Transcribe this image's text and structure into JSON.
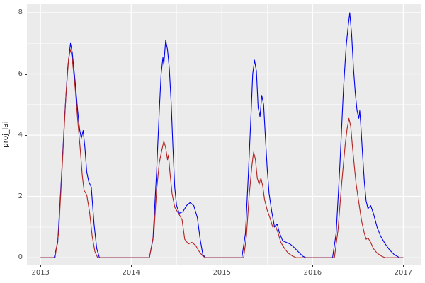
{
  "chart_data": {
    "type": "line",
    "title": "",
    "xlabel": "",
    "ylabel": "proj_lai",
    "xlim": [
      2012.85,
      2017.2
    ],
    "ylim": [
      -0.25,
      8.3
    ],
    "x_ticks": [
      2013,
      2014,
      2015,
      2016,
      2017
    ],
    "x_tick_labels": [
      "2013",
      "2014",
      "2015",
      "2016",
      "2017"
    ],
    "x_minor_ticks": [
      2013.5,
      2014.5,
      2015.5,
      2016.5
    ],
    "y_ticks": [
      0,
      2,
      4,
      6,
      8
    ],
    "y_tick_labels": [
      "0",
      "2",
      "4",
      "6",
      "8"
    ],
    "y_minor_ticks": [
      1,
      3,
      5,
      7
    ],
    "grid": true,
    "legend_position": "none",
    "panel_background": "#EBEBEB",
    "grid_color": "#FFFFFF",
    "tick_label_color": "#4D4D4D",
    "axis_title_color": "#1A1A1A",
    "series": [
      {
        "name": "blue",
        "color": "#0000EE",
        "points": [
          [
            2013.0,
            0
          ],
          [
            2013.15,
            0
          ],
          [
            2013.19,
            0.5
          ],
          [
            2013.23,
            2.6
          ],
          [
            2013.27,
            4.8
          ],
          [
            2013.3,
            6.2
          ],
          [
            2013.33,
            7.0
          ],
          [
            2013.35,
            6.7
          ],
          [
            2013.38,
            5.8
          ],
          [
            2013.41,
            4.8
          ],
          [
            2013.43,
            4.2
          ],
          [
            2013.45,
            3.9
          ],
          [
            2013.47,
            4.15
          ],
          [
            2013.49,
            3.6
          ],
          [
            2013.51,
            2.8
          ],
          [
            2013.53,
            2.5
          ],
          [
            2013.56,
            2.3
          ],
          [
            2013.59,
            1.1
          ],
          [
            2013.62,
            0.3
          ],
          [
            2013.65,
            0
          ],
          [
            2013.9,
            0
          ],
          [
            2014.2,
            0
          ],
          [
            2014.24,
            0.6
          ],
          [
            2014.28,
            2.8
          ],
          [
            2014.31,
            4.8
          ],
          [
            2014.33,
            6.0
          ],
          [
            2014.35,
            6.55
          ],
          [
            2014.36,
            6.3
          ],
          [
            2014.38,
            7.1
          ],
          [
            2014.4,
            6.8
          ],
          [
            2014.42,
            6.2
          ],
          [
            2014.44,
            5.1
          ],
          [
            2014.46,
            3.6
          ],
          [
            2014.48,
            2.3
          ],
          [
            2014.5,
            1.7
          ],
          [
            2014.53,
            1.45
          ],
          [
            2014.57,
            1.5
          ],
          [
            2014.61,
            1.7
          ],
          [
            2014.65,
            1.8
          ],
          [
            2014.69,
            1.7
          ],
          [
            2014.73,
            1.3
          ],
          [
            2014.76,
            0.6
          ],
          [
            2014.79,
            0.1
          ],
          [
            2014.82,
            0
          ],
          [
            2015.0,
            0
          ],
          [
            2015.22,
            0
          ],
          [
            2015.26,
            0.8
          ],
          [
            2015.29,
            2.6
          ],
          [
            2015.32,
            4.6
          ],
          [
            2015.34,
            6.0
          ],
          [
            2015.36,
            6.45
          ],
          [
            2015.38,
            6.1
          ],
          [
            2015.4,
            4.9
          ],
          [
            2015.42,
            4.6
          ],
          [
            2015.44,
            5.3
          ],
          [
            2015.46,
            5.0
          ],
          [
            2015.48,
            3.9
          ],
          [
            2015.5,
            2.9
          ],
          [
            2015.52,
            2.1
          ],
          [
            2015.55,
            1.5
          ],
          [
            2015.58,
            1.0
          ],
          [
            2015.61,
            1.1
          ],
          [
            2015.63,
            0.85
          ],
          [
            2015.67,
            0.55
          ],
          [
            2015.71,
            0.5
          ],
          [
            2015.75,
            0.45
          ],
          [
            2015.79,
            0.35
          ],
          [
            2015.84,
            0.2
          ],
          [
            2015.89,
            0.05
          ],
          [
            2015.93,
            0
          ],
          [
            2016.0,
            0
          ],
          [
            2016.22,
            0
          ],
          [
            2016.26,
            0.8
          ],
          [
            2016.3,
            3.0
          ],
          [
            2016.34,
            5.5
          ],
          [
            2016.37,
            6.9
          ],
          [
            2016.39,
            7.5
          ],
          [
            2016.41,
            8.0
          ],
          [
            2016.43,
            7.3
          ],
          [
            2016.45,
            6.2
          ],
          [
            2016.47,
            5.4
          ],
          [
            2016.49,
            4.8
          ],
          [
            2016.51,
            4.55
          ],
          [
            2016.52,
            4.8
          ],
          [
            2016.53,
            4.4
          ],
          [
            2016.55,
            3.4
          ],
          [
            2016.57,
            2.5
          ],
          [
            2016.59,
            1.85
          ],
          [
            2016.61,
            1.6
          ],
          [
            2016.64,
            1.7
          ],
          [
            2016.67,
            1.45
          ],
          [
            2016.71,
            1.0
          ],
          [
            2016.75,
            0.7
          ],
          [
            2016.8,
            0.45
          ],
          [
            2016.85,
            0.25
          ],
          [
            2016.9,
            0.1
          ],
          [
            2016.96,
            0
          ],
          [
            2017.0,
            0
          ]
        ]
      },
      {
        "name": "red",
        "color": "#B22222",
        "points": [
          [
            2013.0,
            0
          ],
          [
            2013.16,
            0
          ],
          [
            2013.2,
            0.8
          ],
          [
            2013.24,
            3.0
          ],
          [
            2013.28,
            5.3
          ],
          [
            2013.31,
            6.5
          ],
          [
            2013.33,
            6.8
          ],
          [
            2013.35,
            6.5
          ],
          [
            2013.38,
            5.6
          ],
          [
            2013.41,
            4.5
          ],
          [
            2013.44,
            3.5
          ],
          [
            2013.46,
            2.7
          ],
          [
            2013.48,
            2.2
          ],
          [
            2013.51,
            2.05
          ],
          [
            2013.54,
            1.5
          ],
          [
            2013.57,
            0.7
          ],
          [
            2013.6,
            0.2
          ],
          [
            2013.63,
            0
          ],
          [
            2013.9,
            0
          ],
          [
            2014.2,
            0
          ],
          [
            2014.25,
            0.8
          ],
          [
            2014.28,
            2.2
          ],
          [
            2014.31,
            3.1
          ],
          [
            2014.34,
            3.55
          ],
          [
            2014.36,
            3.8
          ],
          [
            2014.38,
            3.6
          ],
          [
            2014.4,
            3.2
          ],
          [
            2014.41,
            3.35
          ],
          [
            2014.43,
            2.7
          ],
          [
            2014.45,
            2.1
          ],
          [
            2014.48,
            1.65
          ],
          [
            2014.52,
            1.45
          ],
          [
            2014.56,
            1.25
          ],
          [
            2014.59,
            0.6
          ],
          [
            2014.63,
            0.45
          ],
          [
            2014.67,
            0.5
          ],
          [
            2014.71,
            0.4
          ],
          [
            2014.75,
            0.2
          ],
          [
            2014.79,
            0.05
          ],
          [
            2014.82,
            0
          ],
          [
            2015.0,
            0
          ],
          [
            2015.24,
            0
          ],
          [
            2015.27,
            0.7
          ],
          [
            2015.3,
            2.0
          ],
          [
            2015.33,
            3.0
          ],
          [
            2015.35,
            3.45
          ],
          [
            2015.37,
            3.2
          ],
          [
            2015.39,
            2.6
          ],
          [
            2015.41,
            2.4
          ],
          [
            2015.43,
            2.6
          ],
          [
            2015.45,
            2.35
          ],
          [
            2015.47,
            1.9
          ],
          [
            2015.5,
            1.55
          ],
          [
            2015.53,
            1.3
          ],
          [
            2015.56,
            1.0
          ],
          [
            2015.59,
            1.05
          ],
          [
            2015.62,
            0.8
          ],
          [
            2015.65,
            0.5
          ],
          [
            2015.69,
            0.3
          ],
          [
            2015.73,
            0.15
          ],
          [
            2015.78,
            0.05
          ],
          [
            2015.82,
            0
          ],
          [
            2016.0,
            0
          ],
          [
            2016.24,
            0
          ],
          [
            2016.28,
            0.9
          ],
          [
            2016.32,
            2.4
          ],
          [
            2016.36,
            3.7
          ],
          [
            2016.38,
            4.2
          ],
          [
            2016.4,
            4.55
          ],
          [
            2016.42,
            4.3
          ],
          [
            2016.44,
            3.6
          ],
          [
            2016.46,
            3.0
          ],
          [
            2016.48,
            2.4
          ],
          [
            2016.51,
            1.8
          ],
          [
            2016.54,
            1.2
          ],
          [
            2016.57,
            0.8
          ],
          [
            2016.59,
            0.6
          ],
          [
            2016.61,
            0.65
          ],
          [
            2016.64,
            0.5
          ],
          [
            2016.67,
            0.3
          ],
          [
            2016.71,
            0.15
          ],
          [
            2016.76,
            0.05
          ],
          [
            2016.8,
            0
          ],
          [
            2017.0,
            0
          ]
        ]
      }
    ]
  }
}
